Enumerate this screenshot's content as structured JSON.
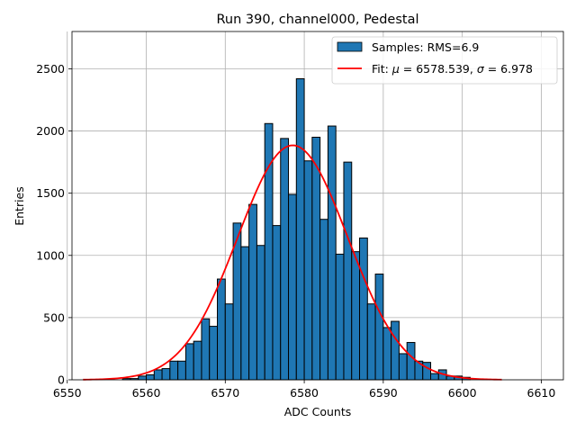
{
  "chart_data": {
    "type": "bar",
    "title": "Run 390, channel000, Pedestal",
    "xlabel": "ADC Counts",
    "ylabel": "Entries",
    "xlim": [
      6550.6,
      6612.8
    ],
    "ylim": [
      0,
      2800
    ],
    "xticks": [
      6550,
      6560,
      6570,
      6580,
      6590,
      6600,
      6610
    ],
    "yticks": [
      0,
      500,
      1000,
      1500,
      2000,
      2500
    ],
    "grid": true,
    "legend_position": "top-right",
    "bin_width": 1,
    "histogram": {
      "name": "Samples: RMS=6.9",
      "color": "#1f77b4",
      "edgecolor": "#000000",
      "bins": [
        6557,
        6558,
        6559,
        6560,
        6561,
        6562,
        6563,
        6564,
        6565,
        6566,
        6567,
        6568,
        6569,
        6570,
        6571,
        6572,
        6573,
        6574,
        6575,
        6576,
        6577,
        6578,
        6579,
        6580,
        6581,
        6582,
        6583,
        6584,
        6585,
        6586,
        6587,
        6588,
        6589,
        6590,
        6591,
        6592,
        6593,
        6594,
        6595,
        6596,
        6597,
        6598,
        6599,
        6600
      ],
      "values": [
        10,
        10,
        30,
        40,
        80,
        90,
        150,
        150,
        290,
        310,
        490,
        430,
        810,
        610,
        1260,
        1070,
        1410,
        1080,
        2060,
        1240,
        1940,
        1490,
        2420,
        1760,
        1950,
        1290,
        2040,
        1010,
        1750,
        1030,
        1140,
        610,
        850,
        420,
        470,
        210,
        300,
        150,
        140,
        50,
        80,
        30,
        30,
        20
      ]
    },
    "fit": {
      "name_prefix": "Fit: ",
      "mu_symbol": "μ",
      "mu_value": " = 6578.539, ",
      "sigma_symbol": "σ",
      "sigma_value": " = 6.978",
      "color": "#ff0000",
      "mu": 6578.539,
      "sigma": 6.978,
      "amplitude": 1885,
      "x_range": [
        6552,
        6605
      ]
    }
  }
}
